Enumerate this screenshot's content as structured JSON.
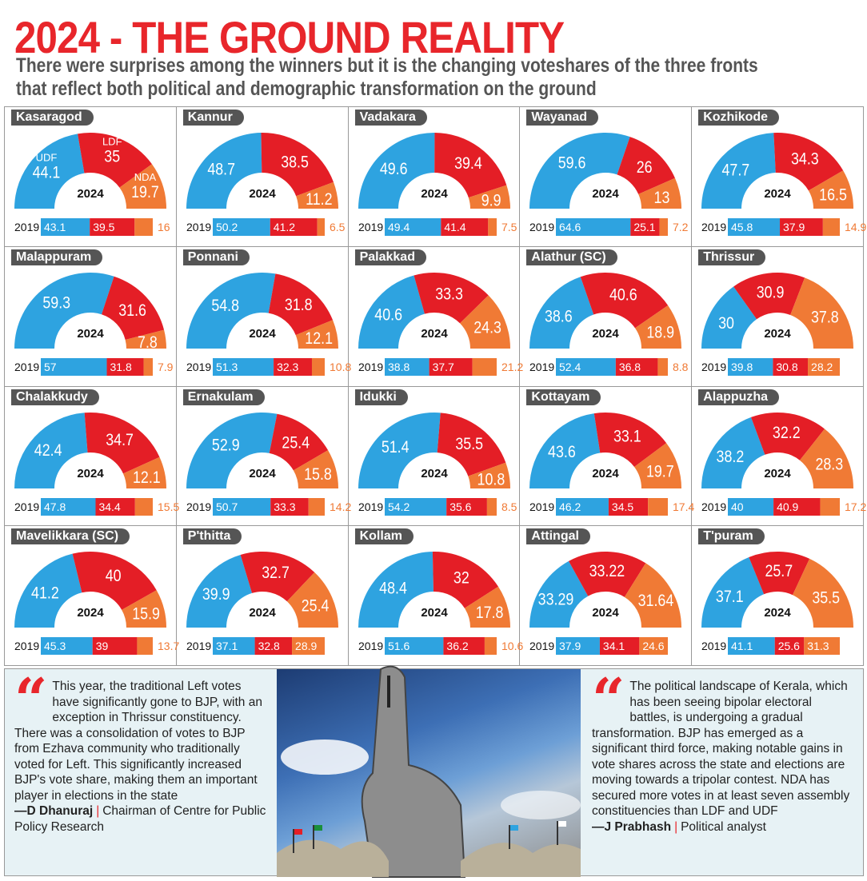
{
  "header": {
    "title": "2024 - THE GROUND REALITY",
    "subtitle": "There were surprises among the winners but it is the changing voteshares of the three fronts that reflect both political and demographic transformation on the ground"
  },
  "colors": {
    "UDF": "#2ea3e0",
    "LDF": "#e41e26",
    "NDA": "#f07a35"
  },
  "chart_data": {
    "type": "half-donut + stacked bar",
    "center_label": "2024",
    "bar_label": "2019",
    "series_labels": [
      "UDF",
      "LDF",
      "NDA"
    ],
    "constituencies": [
      {
        "name": "Kasaragod",
        "y2024": [
          44.1,
          35,
          19.7
        ],
        "y2019": [
          43.1,
          39.5,
          16
        ],
        "legend": true
      },
      {
        "name": "Kannur",
        "y2024": [
          48.7,
          38.5,
          11.2
        ],
        "y2019": [
          50.2,
          41.2,
          6.5
        ]
      },
      {
        "name": "Vadakara",
        "y2024": [
          49.6,
          39.4,
          9.9
        ],
        "y2019": [
          49.4,
          41.4,
          7.5
        ]
      },
      {
        "name": "Wayanad",
        "y2024": [
          59.6,
          26,
          13
        ],
        "y2019": [
          64.6,
          25.1,
          7.2
        ]
      },
      {
        "name": "Kozhikode",
        "y2024": [
          47.7,
          34.3,
          16.5
        ],
        "y2019": [
          45.8,
          37.9,
          14.9
        ]
      },
      {
        "name": "Malappuram",
        "y2024": [
          59.3,
          31.6,
          7.8
        ],
        "y2019": [
          57,
          31.8,
          7.9
        ]
      },
      {
        "name": "Ponnani",
        "y2024": [
          54.8,
          31.8,
          12.1
        ],
        "y2019": [
          51.3,
          32.3,
          10.8
        ]
      },
      {
        "name": "Palakkad",
        "y2024": [
          40.6,
          33.3,
          24.3
        ],
        "y2019": [
          38.8,
          37.7,
          21.2
        ]
      },
      {
        "name": "Alathur (SC)",
        "y2024": [
          38.6,
          40.6,
          18.9
        ],
        "y2019": [
          52.4,
          36.8,
          8.8
        ]
      },
      {
        "name": "Thrissur",
        "y2024": [
          30,
          30.9,
          37.8
        ],
        "y2019": [
          39.8,
          30.8,
          28.2
        ]
      },
      {
        "name": "Chalakkudy",
        "y2024": [
          42.4,
          34.7,
          12.1
        ],
        "y2019": [
          47.8,
          34.4,
          15.5
        ]
      },
      {
        "name": "Ernakulam",
        "y2024": [
          52.9,
          25.4,
          15.8
        ],
        "y2019": [
          50.7,
          33.3,
          14.2
        ]
      },
      {
        "name": "Idukki",
        "y2024": [
          51.4,
          35.5,
          10.8
        ],
        "y2019": [
          54.2,
          35.6,
          8.5
        ]
      },
      {
        "name": "Kottayam",
        "y2024": [
          43.6,
          33.1,
          19.7
        ],
        "y2019": [
          46.2,
          34.5,
          17.4
        ]
      },
      {
        "name": "Alappuzha",
        "y2024": [
          38.2,
          32.2,
          28.3
        ],
        "y2019": [
          40,
          40.9,
          17.2
        ]
      },
      {
        "name": "Mavelikkara (SC)",
        "y2024": [
          41.2,
          40,
          15.9
        ],
        "y2019": [
          45.3,
          39,
          13.7
        ]
      },
      {
        "name": "P'thitta",
        "y2024": [
          39.9,
          32.7,
          25.4
        ],
        "y2019": [
          37.1,
          32.8,
          28.9
        ]
      },
      {
        "name": "Kollam",
        "y2024": [
          48.4,
          32,
          17.8
        ],
        "y2019": [
          51.6,
          36.2,
          10.6
        ]
      },
      {
        "name": "Attingal",
        "y2024": [
          "33.29",
          "33.22",
          "31.64"
        ],
        "y2019": [
          37.9,
          34.1,
          24.6
        ]
      },
      {
        "name": "T'puram",
        "y2024": [
          37.1,
          25.7,
          35.5
        ],
        "y2019": [
          41.1,
          25.6,
          31.3
        ]
      }
    ]
  },
  "quotes": {
    "left": {
      "text": "This year, the traditional Left votes have significantly gone to BJP, with an exception in Thrissur constituency. There was a consolidation of votes to BJP from Ezhava community who traditionally voted for Left. This significantly increased BJP's vote share, making them an important player in elections in the state",
      "author": "—D Dhanuraj",
      "role": "Chairman of Centre for Public Policy Research"
    },
    "right": {
      "text": "The political landscape of Kerala, which has been seeing bipolar electoral battles, is undergoing a gradual transformation. BJP has emerged as a significant third force, making notable gains in vote shares across the state and elections are moving towards a tripolar contest. NDA has secured more votes in at least seven assembly constituencies than LDF and UDF",
      "author": "—J Prabhash",
      "role": "Political analyst"
    }
  }
}
